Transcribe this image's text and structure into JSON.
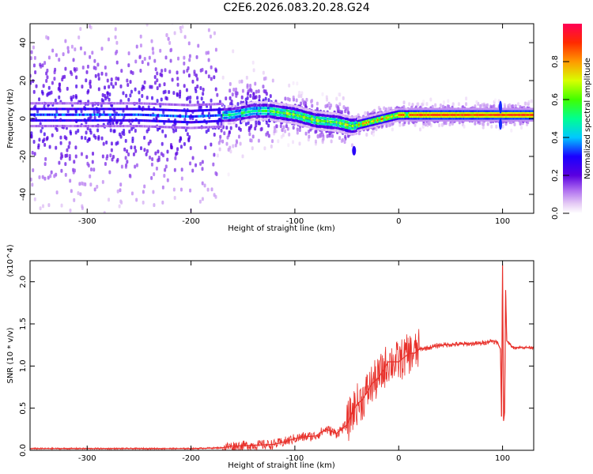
{
  "title": "C2E6.2026.083.20.28.G24",
  "chart_data": [
    {
      "type": "heatmap",
      "title": "C2E6.2026.083.20.28.G24",
      "xlabel": "Height of straight line (km)",
      "ylabel": "Frequency (Hz)",
      "xlim": [
        -355,
        130
      ],
      "ylim": [
        -50,
        50
      ],
      "xticks": [
        -300,
        -200,
        -100,
        0,
        100
      ],
      "yticks": [
        -40,
        -20,
        0,
        20,
        40
      ],
      "colorbar": {
        "label": "Normalized spectral amplitude",
        "range": [
          0,
          1
        ],
        "ticks": [
          0.0,
          0.2,
          0.4,
          0.6,
          0.8
        ],
        "tick_labels": [
          "0.0",
          "0.2",
          "0.4",
          "0.6",
          "0.8"
        ]
      },
      "ridge": {
        "x": [
          -355,
          -250,
          -200,
          -160,
          -140,
          -125,
          -100,
          -80,
          -60,
          -45,
          -30,
          -15,
          0,
          20,
          60,
          95,
          100,
          130
        ],
        "freq": [
          2,
          2,
          1,
          2,
          4,
          4,
          2,
          -1,
          -2,
          -4,
          -2,
          0,
          2,
          2,
          2,
          2,
          2,
          2
        ]
      }
    },
    {
      "type": "line",
      "xlabel": "Height of straight line (km)",
      "ylabel": "SNR (10 * v/v)",
      "y_multiplier": "(x10^4)",
      "xlim": [
        -355,
        130
      ],
      "ylim": [
        0,
        2.25
      ],
      "xticks": [
        -300,
        -200,
        -100,
        0,
        100
      ],
      "yticks": [
        0.0,
        0.5,
        1.0,
        1.5,
        2.0
      ],
      "ytick_labels": [
        "0.0",
        "0.5",
        "1.0",
        "1.5",
        "2.0"
      ],
      "color": "#e8302a",
      "series": [
        {
          "name": "SNR",
          "x": [
            -355,
            -300,
            -250,
            -200,
            -170,
            -160,
            -140,
            -120,
            -110,
            -100,
            -90,
            -80,
            -70,
            -60,
            -50,
            -45,
            -40,
            -35,
            -30,
            -25,
            -20,
            -15,
            -10,
            -5,
            0,
            5,
            10,
            15,
            20,
            30,
            40,
            60,
            80,
            90,
            95,
            98,
            99,
            100,
            101,
            102,
            103,
            104,
            110,
            120,
            130
          ],
          "y": [
            0.02,
            0.02,
            0.02,
            0.02,
            0.03,
            0.05,
            0.06,
            0.07,
            0.1,
            0.14,
            0.16,
            0.17,
            0.25,
            0.2,
            0.3,
            0.45,
            0.55,
            0.6,
            0.7,
            0.8,
            0.85,
            0.95,
            1.05,
            1.05,
            1.05,
            1.1,
            1.15,
            1.15,
            1.2,
            1.22,
            1.25,
            1.26,
            1.27,
            1.3,
            1.28,
            1.2,
            0.4,
            2.2,
            0.35,
            0.45,
            1.9,
            1.3,
            1.22,
            1.22,
            1.22
          ]
        }
      ]
    }
  ]
}
